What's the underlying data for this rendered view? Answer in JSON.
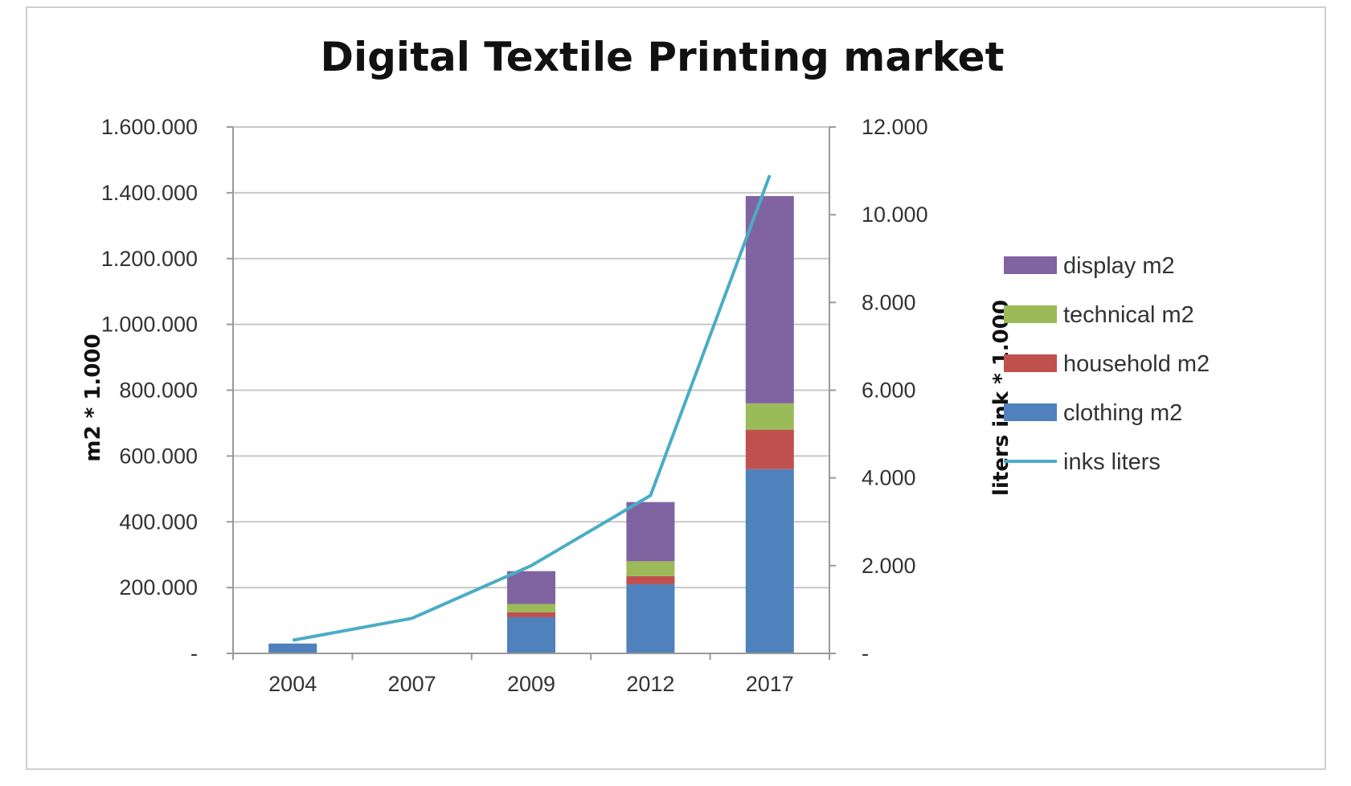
{
  "chart_data": {
    "type": "bar",
    "stacked": true,
    "title": "Digital Textile Printing market",
    "categories": [
      "2004",
      "2007",
      "2009",
      "2012",
      "2017"
    ],
    "ylabel": "m2 * 1.000",
    "y2label": "liters ink * 1.000",
    "ylim": [
      0,
      1600000
    ],
    "y2lim": [
      0,
      12000
    ],
    "yticks": [
      "-",
      "200.000",
      "400.000",
      "600.000",
      "800.000",
      "1.000.000",
      "1.200.000",
      "1.400.000",
      "1.600.000"
    ],
    "y2ticks": [
      "-",
      "2.000",
      "4.000",
      "6.000",
      "8.000",
      "10.000",
      "12.000"
    ],
    "grid": true,
    "legend_position": "right",
    "series": [
      {
        "name": "clothing m2",
        "kind": "bar",
        "axis": "left",
        "color": "#4F81BD",
        "values": [
          30000,
          0,
          110000,
          210000,
          560000
        ]
      },
      {
        "name": "household m2",
        "kind": "bar",
        "axis": "left",
        "color": "#C0504D",
        "values": [
          0,
          0,
          15000,
          25000,
          120000
        ]
      },
      {
        "name": "technical m2",
        "kind": "bar",
        "axis": "left",
        "color": "#9BBB59",
        "values": [
          0,
          0,
          25000,
          45000,
          80000
        ]
      },
      {
        "name": "display m2",
        "kind": "bar",
        "axis": "left",
        "color": "#8064A2",
        "values": [
          0,
          0,
          100000,
          180000,
          630000
        ]
      },
      {
        "name": "inks liters",
        "kind": "line",
        "axis": "right",
        "color": "#4BACC6",
        "values": [
          300,
          800,
          2000,
          3600,
          10900
        ]
      }
    ],
    "legend_order": [
      "display m2",
      "technical m2",
      "household m2",
      "clothing m2",
      "inks liters"
    ]
  }
}
